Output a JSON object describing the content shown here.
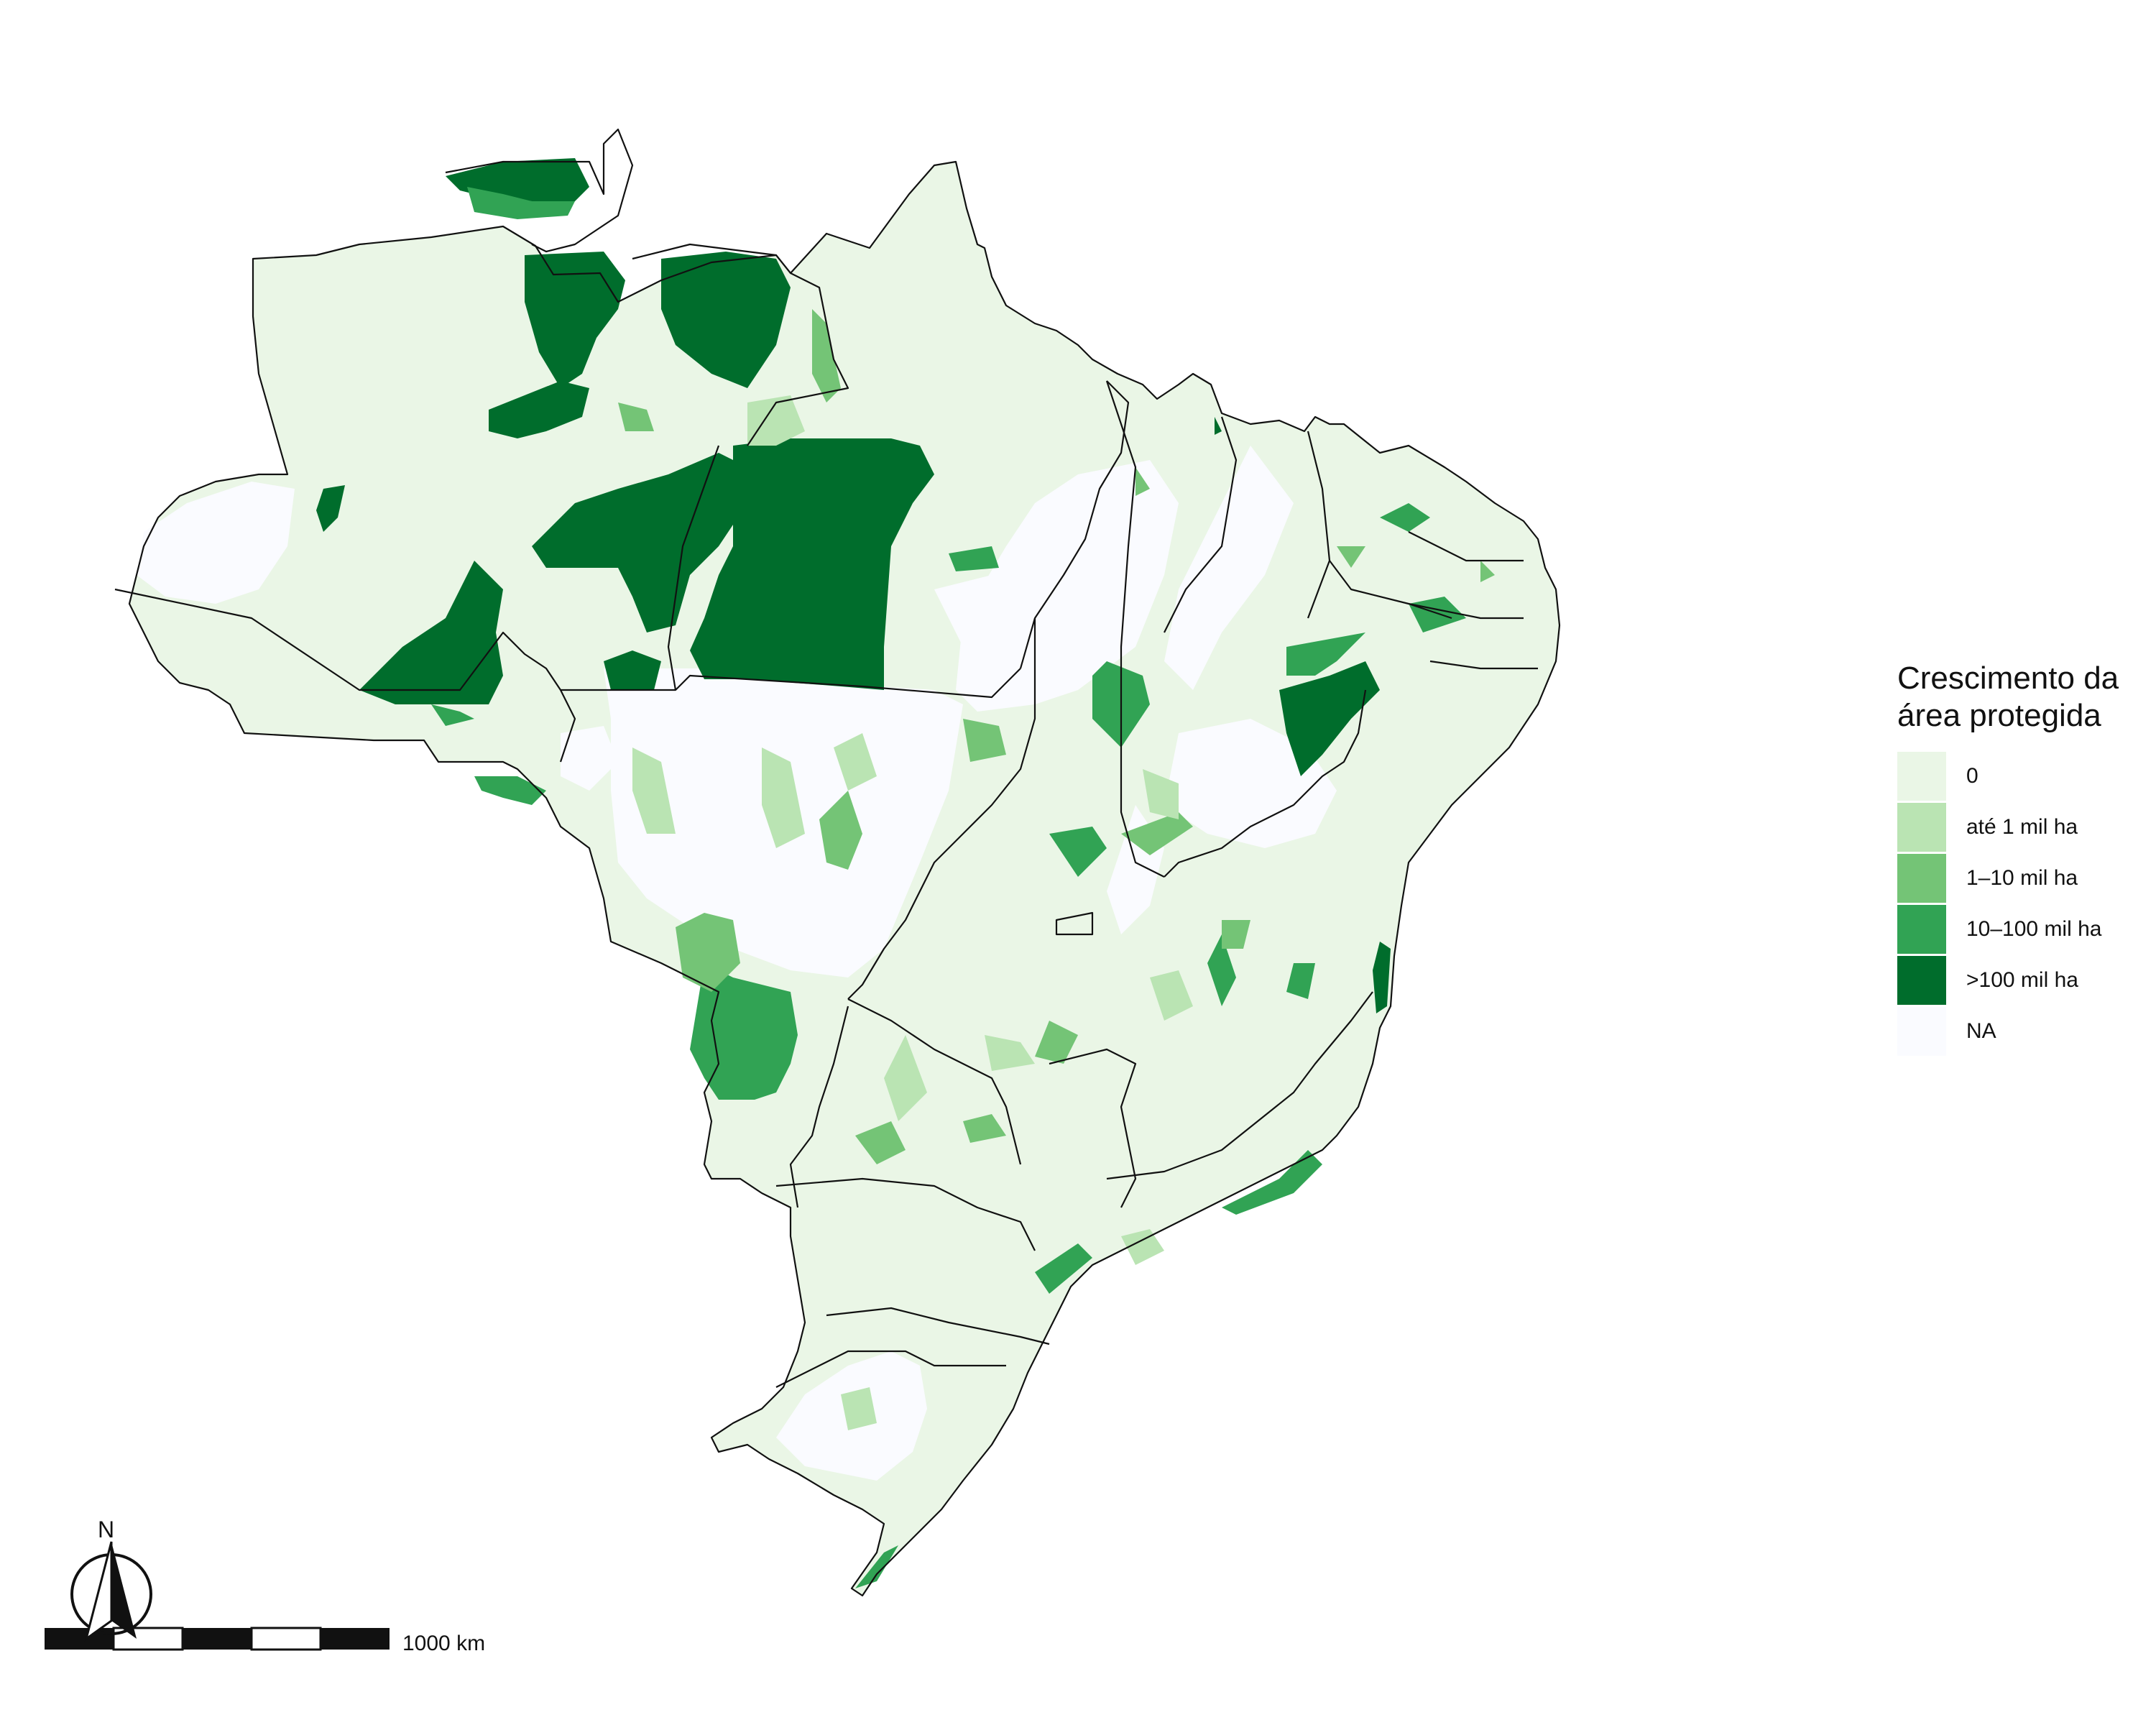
{
  "legend": {
    "title_line1": "Crescimento da",
    "title_line2": "área protegida",
    "items": [
      {
        "label": "0",
        "color": "#eaf6e6"
      },
      {
        "label": "até 1 mil ha",
        "color": "#bae4b3"
      },
      {
        "label": "1–10 mil ha",
        "color": "#74c476"
      },
      {
        "label": "10–100 mil ha",
        "color": "#31a354"
      },
      {
        "label": ">100 mil ha",
        "color": "#006d2c"
      },
      {
        "label": "NA",
        "color": "#fafbff"
      }
    ]
  },
  "scale_bar": {
    "label": "1000 km"
  },
  "north_arrow": {
    "letter": "N",
    "icon": "north-arrow-icon"
  }
}
